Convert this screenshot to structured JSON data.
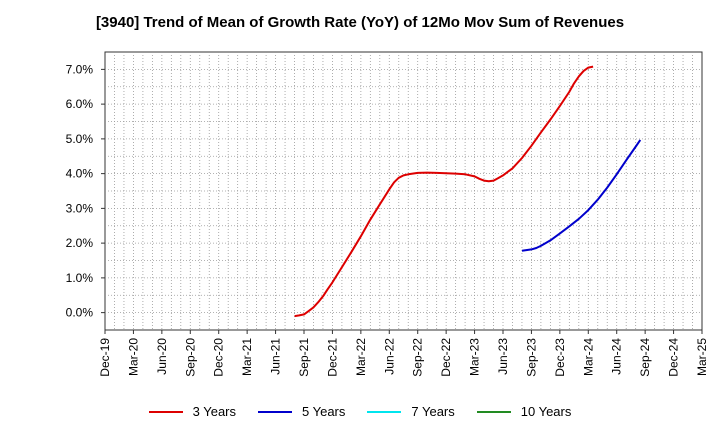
{
  "chart_data": {
    "type": "line",
    "title": "[3940]  Trend of Mean of Growth Rate (YoY) of 12Mo Mov Sum of Revenues",
    "xlabel": "",
    "ylabel": "",
    "ylim": [
      -0.5,
      7.5
    ],
    "yticks": [
      0.0,
      1.0,
      2.0,
      3.0,
      4.0,
      5.0,
      6.0,
      7.0
    ],
    "ytick_labels": [
      "0.0%",
      "1.0%",
      "2.0%",
      "3.0%",
      "4.0%",
      "5.0%",
      "6.0%",
      "7.0%"
    ],
    "categories": [
      "Dec-19",
      "Mar-20",
      "Jun-20",
      "Sep-20",
      "Dec-20",
      "Mar-21",
      "Jun-21",
      "Sep-21",
      "Dec-21",
      "Mar-22",
      "Jun-22",
      "Sep-22",
      "Dec-22",
      "Mar-23",
      "Jun-23",
      "Sep-23",
      "Dec-23",
      "Mar-24",
      "Jun-24",
      "Sep-24",
      "Dec-24",
      "Mar-25"
    ],
    "grid": true,
    "legend_position": "bottom",
    "series": [
      {
        "name": "3 Years",
        "color": "#dd0000",
        "points": [
          [
            6.67,
            -0.1
          ],
          [
            6.83,
            -0.08
          ],
          [
            7,
            -0.05
          ],
          [
            7.17,
            0.05
          ],
          [
            7.33,
            0.15
          ],
          [
            7.5,
            0.3
          ],
          [
            7.67,
            0.47
          ],
          [
            7.83,
            0.67
          ],
          [
            8,
            0.87
          ],
          [
            8.33,
            1.3
          ],
          [
            8.67,
            1.75
          ],
          [
            9,
            2.2
          ],
          [
            9.33,
            2.67
          ],
          [
            9.67,
            3.12
          ],
          [
            10,
            3.55
          ],
          [
            10.17,
            3.75
          ],
          [
            10.33,
            3.88
          ],
          [
            10.5,
            3.95
          ],
          [
            10.67,
            3.98
          ],
          [
            11,
            4.02
          ],
          [
            11.33,
            4.03
          ],
          [
            11.67,
            4.02
          ],
          [
            12,
            4.01
          ],
          [
            12.33,
            4.0
          ],
          [
            12.67,
            3.98
          ],
          [
            13,
            3.92
          ],
          [
            13.17,
            3.85
          ],
          [
            13.33,
            3.8
          ],
          [
            13.5,
            3.78
          ],
          [
            13.67,
            3.8
          ],
          [
            13.83,
            3.87
          ],
          [
            14,
            3.95
          ],
          [
            14.33,
            4.15
          ],
          [
            14.67,
            4.45
          ],
          [
            15,
            4.8
          ],
          [
            15.33,
            5.18
          ],
          [
            15.67,
            5.56
          ],
          [
            16,
            5.95
          ],
          [
            16.33,
            6.35
          ],
          [
            16.5,
            6.6
          ],
          [
            16.67,
            6.8
          ],
          [
            16.83,
            6.95
          ],
          [
            17,
            7.05
          ],
          [
            17.17,
            7.08
          ]
        ]
      },
      {
        "name": "5 Years",
        "color": "#0000cc",
        "points": [
          [
            14.67,
            1.78
          ],
          [
            15,
            1.82
          ],
          [
            15.17,
            1.86
          ],
          [
            15.33,
            1.92
          ],
          [
            15.5,
            2.0
          ],
          [
            15.67,
            2.08
          ],
          [
            16,
            2.28
          ],
          [
            16.33,
            2.48
          ],
          [
            16.67,
            2.7
          ],
          [
            17,
            2.95
          ],
          [
            17.33,
            3.25
          ],
          [
            17.67,
            3.6
          ],
          [
            18,
            3.98
          ],
          [
            18.33,
            4.38
          ],
          [
            18.67,
            4.78
          ],
          [
            18.83,
            4.97
          ]
        ]
      },
      {
        "name": "7 Years",
        "color": "#00e5ee",
        "points": []
      },
      {
        "name": "10 Years",
        "color": "#228b22",
        "points": []
      }
    ]
  }
}
